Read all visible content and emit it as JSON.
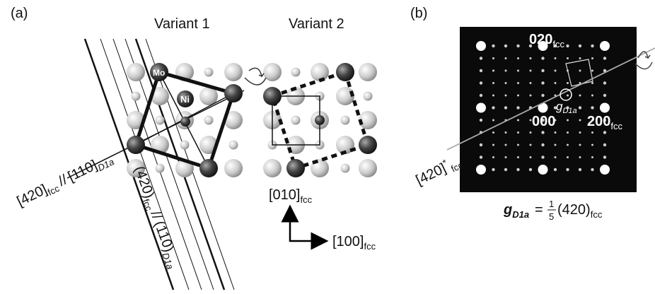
{
  "panel_a": {
    "label": "(a)",
    "variant_1": "Variant 1",
    "variant_2": "Variant 2",
    "atoms": {
      "mo": "Mo",
      "ni": "Ni"
    },
    "direction_label": {
      "part1": "[420]",
      "sub1": "fcc",
      "separator": "//",
      "part2": "[110]",
      "sub2": "D1a"
    },
    "plane_label": {
      "part1": "(420)",
      "sub1": "fcc",
      "separator": "//",
      "part2": "(110)",
      "sub2": "D1a"
    },
    "axis_y": {
      "text": "[010]",
      "sub": "fcc"
    },
    "axis_x": {
      "text": "[100]",
      "sub": "fcc"
    }
  },
  "panel_b": {
    "label": "(b)",
    "spot_020": {
      "text": "020",
      "sub": "fcc"
    },
    "spot_000": "000",
    "spot_200": {
      "text": "200",
      "sub": "fcc"
    },
    "g_label": {
      "text": "g",
      "sub": "D1a"
    },
    "direction": {
      "text": "[420]",
      "sup": "*",
      "sub": "fcc"
    },
    "equation": {
      "g": "g",
      "sub": "D1a",
      "equals": "=",
      "numerator": "1",
      "denominator": "5",
      "plane": "(420)",
      "plane_sub": "fcc"
    }
  }
}
